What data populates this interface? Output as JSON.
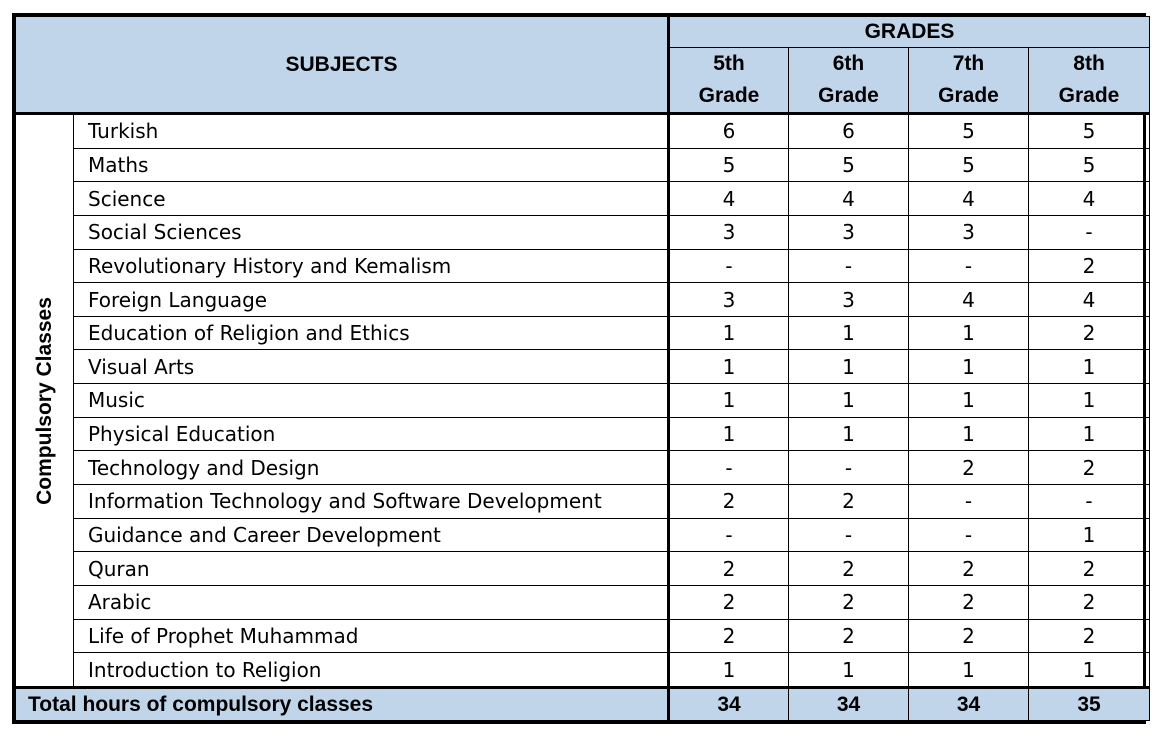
{
  "header": {
    "subjects_label": "SUBJECTS",
    "grades_label": "GRADES",
    "grades": [
      {
        "line1": "5th",
        "line2": "Grade"
      },
      {
        "line1": "6th",
        "line2": "Grade"
      },
      {
        "line1": "7th",
        "line2": "Grade"
      },
      {
        "line1": "8th",
        "line2": "Grade"
      }
    ]
  },
  "category_label": "Compulsory Classes",
  "rows": [
    {
      "subject": "Turkish",
      "values": [
        "6",
        "6",
        "5",
        "5"
      ]
    },
    {
      "subject": "Maths",
      "values": [
        "5",
        "5",
        "5",
        "5"
      ]
    },
    {
      "subject": "Science",
      "values": [
        "4",
        "4",
        "4",
        "4"
      ]
    },
    {
      "subject": "Social Sciences",
      "values": [
        "3",
        "3",
        "3",
        "-"
      ]
    },
    {
      "subject": "Revolutionary History and Kemalism",
      "values": [
        "-",
        "-",
        "-",
        "2"
      ]
    },
    {
      "subject": "Foreign Language",
      "values": [
        "3",
        "3",
        "4",
        "4"
      ]
    },
    {
      "subject": "Education of Religion and Ethics",
      "values": [
        "1",
        "1",
        "1",
        "2"
      ]
    },
    {
      "subject": "Visual Arts",
      "values": [
        "1",
        "1",
        "1",
        "1"
      ]
    },
    {
      "subject": "Music",
      "values": [
        "1",
        "1",
        "1",
        "1"
      ]
    },
    {
      "subject": "Physical Education",
      "values": [
        "1",
        "1",
        "1",
        "1"
      ]
    },
    {
      "subject": "Technology and Design",
      "values": [
        "-",
        "-",
        "2",
        "2"
      ]
    },
    {
      "subject": "Information Technology and Software Development",
      "values": [
        "2",
        "2",
        "-",
        "-"
      ]
    },
    {
      "subject": "Guidance and Career Development",
      "values": [
        "-",
        "-",
        "-",
        "1"
      ]
    },
    {
      "subject": "Quran",
      "values": [
        "2",
        "2",
        "2",
        "2"
      ]
    },
    {
      "subject": "Arabic",
      "values": [
        "2",
        "2",
        "2",
        "2"
      ]
    },
    {
      "subject": "Life of Prophet Muhammad",
      "values": [
        "2",
        "2",
        "2",
        "2"
      ]
    },
    {
      "subject": "Introduction to Religion",
      "values": [
        "1",
        "1",
        "1",
        "1"
      ]
    }
  ],
  "total": {
    "label": "Total hours of compulsory classes",
    "values": [
      "34",
      "34",
      "34",
      "35"
    ]
  },
  "colors": {
    "header_fill": "#c0d4ea",
    "border": "#000000"
  }
}
